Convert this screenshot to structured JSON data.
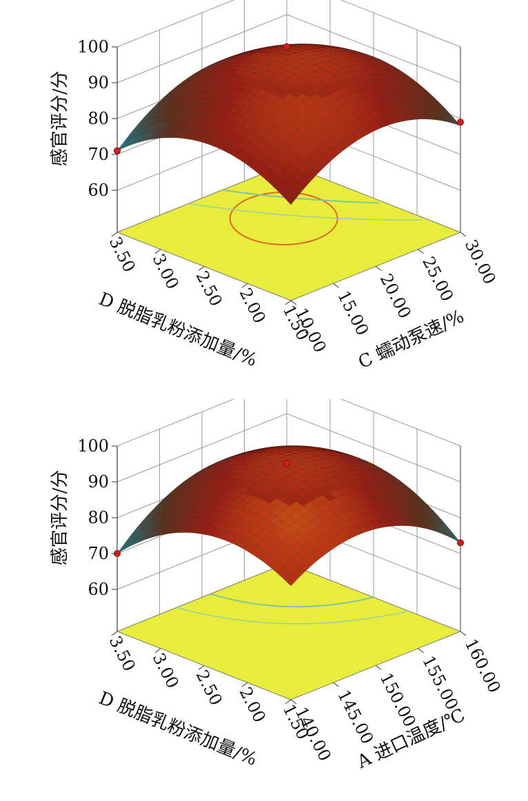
{
  "chart_data": [
    {
      "type": "surface3d",
      "zlabel": "感官评分/分",
      "zlim": [
        60,
        100
      ],
      "z_ticks": [
        "60",
        "70",
        "80",
        "90",
        "100"
      ],
      "left_axis": {
        "label": "D 脱脂乳粉添加量/%",
        "ticks": [
          "3.50",
          "3.00",
          "2.50",
          "2.00",
          "1.50"
        ]
      },
      "right_axis": {
        "label": "C 蠕动泵速/%",
        "ticks": [
          "10.00",
          "15.00",
          "20.00",
          "25.00",
          "30.00"
        ]
      },
      "grid": true,
      "surface": {
        "left_corner": 71,
        "center": 95,
        "right_corner": 78,
        "front_corner": 75,
        "back_corner": 78
      },
      "design_points": [
        {
          "corner": "left",
          "value": 71
        },
        {
          "corner": "center",
          "value": 98
        },
        {
          "corner": "center",
          "value": 81
        },
        {
          "corner": "right",
          "value": 79
        }
      ],
      "base_contour": "ellipse"
    },
    {
      "type": "surface3d",
      "zlabel": "感官评分/分",
      "zlim": [
        60,
        100
      ],
      "z_ticks": [
        "60",
        "70",
        "80",
        "90",
        "100"
      ],
      "left_axis": {
        "label": "D 脱脂乳粉添加量/%",
        "ticks": [
          "3.50",
          "3.00",
          "2.50",
          "2.00",
          "1.50"
        ]
      },
      "right_axis": {
        "label": "A 进口温度/℃",
        "ticks": [
          "140.00",
          "145.00",
          "150.00",
          "155.00",
          "160.00"
        ]
      },
      "grid": true,
      "surface": {
        "left_corner": 70,
        "center": 95,
        "right_corner": 73,
        "front_corner": 80,
        "back_corner": 78
      },
      "design_points": [
        {
          "corner": "left",
          "value": 70
        },
        {
          "corner": "center",
          "value": 96
        },
        {
          "corner": "center",
          "value": 97
        },
        {
          "corner": "center",
          "value": 76
        },
        {
          "corner": "right",
          "value": 73
        }
      ],
      "base_contour": "arcs"
    }
  ]
}
